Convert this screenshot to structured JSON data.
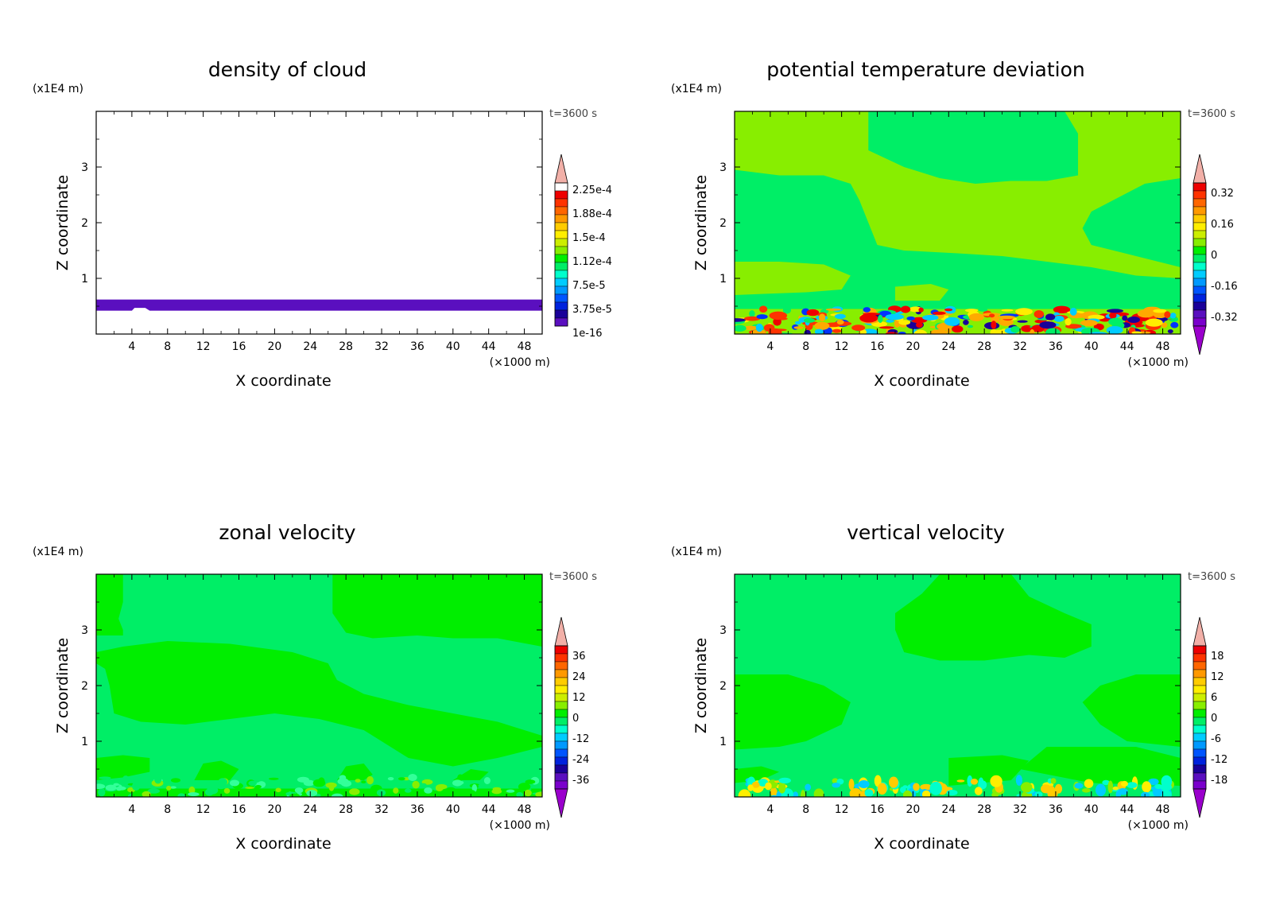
{
  "chart_data": [
    {
      "type": "heatmap",
      "title": "density of cloud",
      "xlabel": "X coordinate",
      "ylabel": "Z coordinate",
      "x_unit": "(×1000 m)",
      "y_unit": "(x1E4 m)",
      "time_label": "t=3600 s",
      "xlim": [
        0,
        50
      ],
      "ylim": [
        0,
        4
      ],
      "x_ticks": [
        "4",
        "8",
        "12",
        "16",
        "20",
        "24",
        "28",
        "32",
        "36",
        "40",
        "44",
        "48"
      ],
      "y_ticks": [
        "1",
        "2",
        "3"
      ],
      "background_color": "#ffffff",
      "colorbar_labels": [
        "2.25e-4",
        "1.88e-4",
        "1.5e-4",
        "1.12e-4",
        "7.5e-5",
        "3.75e-5",
        "1e-16"
      ],
      "colorbar_bottom_triangle": false,
      "regions": [
        {
          "color": "#5a0fbf",
          "polygon": [
            [
              0,
              0.42
            ],
            [
              4,
              0.42
            ],
            [
              4.3,
              0.47
            ],
            [
              5.5,
              0.47
            ],
            [
              6,
              0.42
            ],
            [
              50,
              0.42
            ],
            [
              50,
              0.62
            ],
            [
              0,
              0.62
            ]
          ]
        }
      ]
    },
    {
      "type": "heatmap",
      "title": "potential temperature deviation",
      "xlabel": "X coordinate",
      "ylabel": "Z coordinate",
      "x_unit": "(×1000 m)",
      "y_unit": "(x1E4 m)",
      "time_label": "t=3600 s",
      "xlim": [
        0,
        50
      ],
      "ylim": [
        0,
        4
      ],
      "x_ticks": [
        "4",
        "8",
        "12",
        "16",
        "20",
        "24",
        "28",
        "32",
        "36",
        "40",
        "44",
        "48"
      ],
      "y_ticks": [
        "1",
        "2",
        "3"
      ],
      "background_color": "#00ee66",
      "colorbar_labels": [
        "0.32",
        "0.16",
        "0",
        "-0.16",
        "-0.32"
      ],
      "colorbar_bottom_triangle": true,
      "regions": [
        {
          "color": "#88ee00",
          "polygon": [
            [
              0,
              4
            ],
            [
              15,
              4
            ],
            [
              15,
              3.3
            ],
            [
              19,
              3
            ],
            [
              23,
              2.8
            ],
            [
              27,
              2.7
            ],
            [
              31,
              2.75
            ],
            [
              35,
              2.75
            ],
            [
              38.5,
              2.85
            ],
            [
              38.5,
              3.6
            ],
            [
              37,
              4
            ],
            [
              50,
              4
            ],
            [
              50,
              2.8
            ],
            [
              46,
              2.7
            ],
            [
              40,
              2.2
            ],
            [
              39,
              1.9
            ],
            [
              40,
              1.6
            ],
            [
              50,
              1.2
            ],
            [
              50,
              1.0
            ],
            [
              45,
              1.05
            ],
            [
              40,
              1.2
            ],
            [
              35,
              1.3
            ],
            [
              30,
              1.4
            ],
            [
              25,
              1.45
            ],
            [
              19,
              1.5
            ],
            [
              16,
              1.6
            ],
            [
              15,
              2
            ],
            [
              14,
              2.4
            ],
            [
              13,
              2.7
            ],
            [
              10,
              2.85
            ],
            [
              5,
              2.85
            ],
            [
              0,
              2.95
            ]
          ]
        },
        {
          "color": "#88ee00",
          "polygon": [
            [
              0,
              0.7
            ],
            [
              0,
              1.3
            ],
            [
              5,
              1.3
            ],
            [
              10,
              1.25
            ],
            [
              13,
              1.05
            ],
            [
              12,
              0.8
            ],
            [
              8,
              0.75
            ],
            [
              3,
              0.72
            ]
          ]
        },
        {
          "color": "#88ee00",
          "polygon": [
            [
              18,
              0.6
            ],
            [
              18,
              0.85
            ],
            [
              22,
              0.9
            ],
            [
              24,
              0.8
            ],
            [
              23,
              0.6
            ]
          ]
        },
        {
          "color": "#88ee00",
          "polygon": [
            [
              0,
              0
            ],
            [
              50,
              0
            ],
            [
              50,
              0.45
            ],
            [
              0,
              0.45
            ]
          ]
        }
      ],
      "speckles": [
        "#ff3300",
        "#ffaa00",
        "#0033ff",
        "#00ccff",
        "#1a0099",
        "#ffee00",
        "#00ee66",
        "#ee0000"
      ],
      "speckle_band": [
        0,
        0.45
      ]
    },
    {
      "type": "heatmap",
      "title": "zonal velocity",
      "xlabel": "X coordinate",
      "ylabel": "Z coordinate",
      "x_unit": "(×1000 m)",
      "y_unit": "(x1E4 m)",
      "time_label": "t=3600 s",
      "xlim": [
        0,
        50
      ],
      "ylim": [
        0,
        4
      ],
      "x_ticks": [
        "4",
        "8",
        "12",
        "16",
        "20",
        "24",
        "28",
        "32",
        "36",
        "40",
        "44",
        "48"
      ],
      "y_ticks": [
        "1",
        "2",
        "3"
      ],
      "background_color": "#00ee66",
      "colorbar_labels": [
        "36",
        "24",
        "12",
        "0",
        "-12",
        "-24",
        "-36"
      ],
      "colorbar_bottom_triangle": true,
      "regions": [
        {
          "color": "#00ee00",
          "polygon": [
            [
              0,
              4
            ],
            [
              3,
              4
            ],
            [
              3,
              3.5
            ],
            [
              2.5,
              3.2
            ],
            [
              3,
              3.0
            ],
            [
              3,
              2.9
            ],
            [
              0,
              2.9
            ]
          ]
        },
        {
          "color": "#00ee00",
          "polygon": [
            [
              26.5,
              4
            ],
            [
              50,
              4
            ],
            [
              50,
              2.7
            ],
            [
              45,
              2.85
            ],
            [
              40,
              2.85
            ],
            [
              36,
              2.9
            ],
            [
              31,
              2.85
            ],
            [
              28,
              2.95
            ],
            [
              26.5,
              3.3
            ]
          ]
        },
        {
          "color": "#00ee00",
          "polygon": [
            [
              0,
              2.6
            ],
            [
              3,
              2.7
            ],
            [
              8,
              2.8
            ],
            [
              15,
              2.75
            ],
            [
              22,
              2.6
            ],
            [
              26,
              2.4
            ],
            [
              27,
              2.1
            ],
            [
              30,
              1.85
            ],
            [
              35,
              1.65
            ],
            [
              40,
              1.5
            ],
            [
              45,
              1.35
            ],
            [
              50,
              1.1
            ],
            [
              50,
              0.9
            ],
            [
              45,
              0.7
            ],
            [
              40,
              0.55
            ],
            [
              35,
              0.7
            ],
            [
              30,
              1.2
            ],
            [
              25,
              1.4
            ],
            [
              20,
              1.5
            ],
            [
              15,
              1.4
            ],
            [
              10,
              1.3
            ],
            [
              5,
              1.35
            ],
            [
              2,
              1.5
            ],
            [
              1.5,
              2.0
            ],
            [
              1,
              2.3
            ],
            [
              0,
              2.4
            ]
          ]
        },
        {
          "color": "#00ee00",
          "polygon": [
            [
              0,
              0.3
            ],
            [
              0,
              0.7
            ],
            [
              3,
              0.75
            ],
            [
              6,
              0.7
            ],
            [
              6,
              0.45
            ],
            [
              3,
              0.35
            ]
          ]
        },
        {
          "color": "#00ee00",
          "polygon": [
            [
              11,
              0.3
            ],
            [
              12,
              0.6
            ],
            [
              14,
              0.65
            ],
            [
              16,
              0.5
            ],
            [
              15,
              0.3
            ]
          ]
        },
        {
          "color": "#00ee00",
          "polygon": [
            [
              27,
              0.3
            ],
            [
              28,
              0.55
            ],
            [
              30,
              0.6
            ],
            [
              31,
              0.4
            ],
            [
              30,
              0.3
            ]
          ]
        },
        {
          "color": "#00ee00",
          "polygon": [
            [
              40,
              0.3
            ],
            [
              42,
              0.5
            ],
            [
              44,
              0.45
            ],
            [
              43,
              0.3
            ]
          ]
        },
        {
          "color": "#00ee00",
          "polygon": [
            [
              0,
              0
            ],
            [
              50,
              0
            ],
            [
              50,
              0.15
            ],
            [
              0,
              0.15
            ]
          ]
        }
      ],
      "speckles": [
        "#00ee00",
        "#88ee00",
        "#00ee66",
        "#33ff99"
      ],
      "speckle_band": [
        0,
        0.35
      ]
    },
    {
      "type": "heatmap",
      "title": "vertical velocity",
      "xlabel": "X coordinate",
      "ylabel": "Z coordinate",
      "x_unit": "(×1000 m)",
      "y_unit": "(x1E4 m)",
      "time_label": "t=3600 s",
      "xlim": [
        0,
        50
      ],
      "ylim": [
        0,
        4
      ],
      "x_ticks": [
        "4",
        "8",
        "12",
        "16",
        "20",
        "24",
        "28",
        "32",
        "36",
        "40",
        "44",
        "48"
      ],
      "y_ticks": [
        "1",
        "2",
        "3"
      ],
      "background_color": "#00ee66",
      "colorbar_labels": [
        "18",
        "12",
        "6",
        "0",
        "-6",
        "-12",
        "-18"
      ],
      "colorbar_bottom_triangle": true,
      "regions": [
        {
          "color": "#00ee00",
          "polygon": [
            [
              18,
              3.3
            ],
            [
              21,
              3.65
            ],
            [
              23,
              4
            ],
            [
              31,
              4
            ],
            [
              33,
              3.6
            ],
            [
              37,
              3.3
            ],
            [
              40,
              3.1
            ],
            [
              40,
              2.7
            ],
            [
              37,
              2.5
            ],
            [
              33,
              2.55
            ],
            [
              28,
              2.45
            ],
            [
              23,
              2.45
            ],
            [
              19,
              2.6
            ],
            [
              18,
              3.0
            ]
          ]
        },
        {
          "color": "#00ee00",
          "polygon": [
            [
              0,
              2.2
            ],
            [
              6,
              2.2
            ],
            [
              10,
              2.0
            ],
            [
              13,
              1.7
            ],
            [
              12,
              1.3
            ],
            [
              8,
              1.0
            ],
            [
              5,
              0.9
            ],
            [
              0,
              0.85
            ]
          ]
        },
        {
          "color": "#00ee00",
          "polygon": [
            [
              50,
              2.2
            ],
            [
              45,
              2.2
            ],
            [
              41,
              2.0
            ],
            [
              39,
              1.7
            ],
            [
              41,
              1.3
            ],
            [
              44,
              1.0
            ],
            [
              50,
              0.9
            ]
          ]
        },
        {
          "color": "#00ee00",
          "polygon": [
            [
              0,
              0.25
            ],
            [
              0,
              0.5
            ],
            [
              3,
              0.55
            ],
            [
              5,
              0.45
            ],
            [
              3,
              0.3
            ]
          ]
        },
        {
          "color": "#00ee00",
          "polygon": [
            [
              24,
              0.2
            ],
            [
              24,
              0.7
            ],
            [
              30,
              0.75
            ],
            [
              33,
              0.65
            ],
            [
              31,
              0.3
            ]
          ]
        },
        {
          "color": "#00ee00",
          "polygon": [
            [
              32,
              0.5
            ],
            [
              35,
              0.9
            ],
            [
              45,
              0.9
            ],
            [
              50,
              0.7
            ],
            [
              50,
              0.2
            ],
            [
              40,
              0.25
            ]
          ]
        }
      ],
      "speckles": [
        "#88ee00",
        "#ffee00",
        "#00ffcc",
        "#00ccff",
        "#ffcc00"
      ],
      "speckle_band": [
        0,
        0.3
      ]
    }
  ]
}
